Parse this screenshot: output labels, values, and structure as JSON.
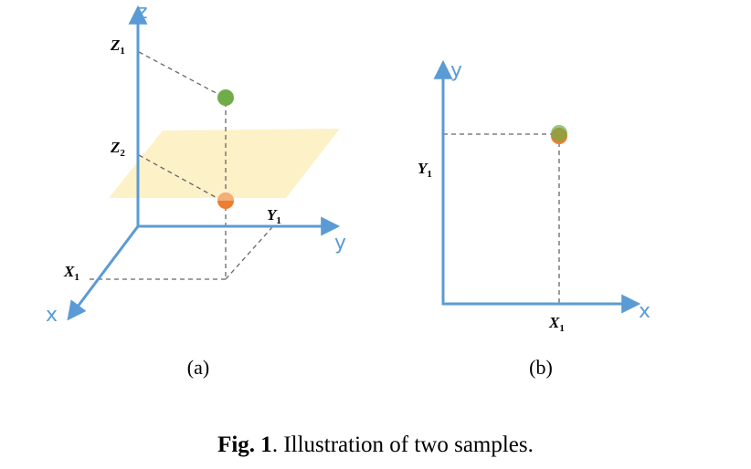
{
  "panel_a": {
    "axes": {
      "z": "z",
      "y": "y",
      "x": "x"
    },
    "ticks": {
      "z1": {
        "main": "Z",
        "sub": "1"
      },
      "z2": {
        "main": "Z",
        "sub": "2"
      },
      "y1": {
        "main": "Y",
        "sub": "1"
      },
      "x1": {
        "main": "X",
        "sub": "1"
      }
    },
    "label": "(a)"
  },
  "panel_b": {
    "axes": {
      "y": "y",
      "x": "x"
    },
    "ticks": {
      "y1": {
        "main": "Y",
        "sub": "1"
      },
      "x1": {
        "main": "X",
        "sub": "1"
      }
    },
    "label": "(b)"
  },
  "colors": {
    "axis": "#5b9bd5",
    "plane": "#fdf0c2",
    "sample_green": "#70ad47",
    "sample_orange": "#ed7d31",
    "guide": "#666666"
  },
  "caption": {
    "bold": "Fig. 1",
    "text": ". Illustration of two samples."
  }
}
